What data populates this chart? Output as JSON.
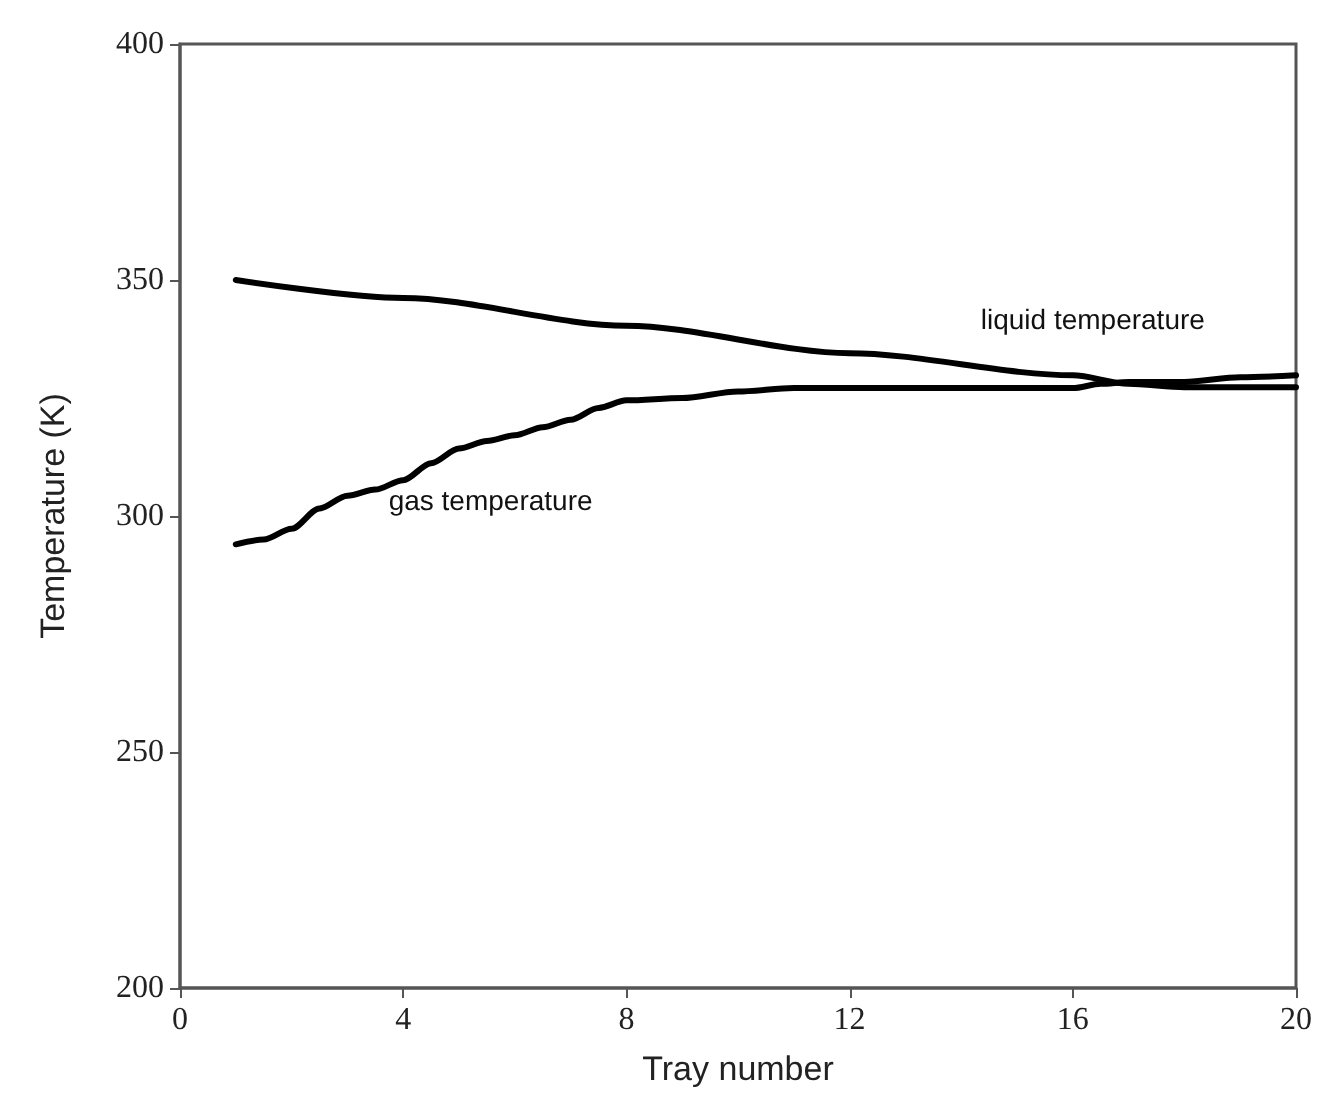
{
  "chart_data": {
    "type": "line",
    "xlabel": "Tray number",
    "ylabel": "Temperature (K)",
    "xlim": [
      0,
      20
    ],
    "xticks": [
      0,
      4,
      8,
      12,
      16,
      20
    ],
    "ylim": [
      200,
      400
    ],
    "yticks": [
      200,
      250,
      300,
      350,
      400
    ],
    "grid": false,
    "legend": false,
    "marker": "none",
    "line_style": "solid",
    "series": [
      {
        "name": "liquid temperature",
        "color": "#000000",
        "x": [
          1,
          4,
          8,
          12,
          16,
          17,
          18,
          20
        ],
        "values": [
          350,
          346.2,
          340.3,
          334.5,
          329.8,
          328,
          327.3,
          327.3
        ]
      },
      {
        "name": "gas temperature",
        "color": "#000000",
        "x": [
          1,
          1.5,
          2,
          2.5,
          3,
          3.5,
          4,
          4.5,
          5,
          5.5,
          6,
          6.5,
          7,
          7.5,
          8,
          9,
          10,
          11,
          16,
          16.5,
          17,
          18,
          19,
          20
        ],
        "values": [
          294,
          295,
          297.3,
          301.6,
          304.3,
          305.6,
          307.6,
          311.2,
          314.3,
          315.9,
          317.1,
          318.8,
          320.4,
          322.9,
          324.5,
          325,
          326.4,
          327.1,
          327.1,
          328,
          328.4,
          328.4,
          329.4,
          329.8
        ]
      }
    ]
  }
}
